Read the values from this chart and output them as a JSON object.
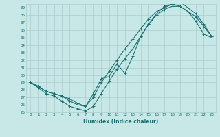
{
  "xlabel": "Humidex (Indice chaleur)",
  "xlim": [
    -0.5,
    23.5
  ],
  "ylim": [
    25,
    39.5
  ],
  "xticks": [
    0,
    1,
    2,
    3,
    4,
    5,
    6,
    7,
    8,
    9,
    10,
    11,
    12,
    13,
    14,
    15,
    16,
    17,
    18,
    19,
    20,
    21,
    22,
    23
  ],
  "yticks": [
    25,
    26,
    27,
    28,
    29,
    30,
    31,
    32,
    33,
    34,
    35,
    36,
    37,
    38,
    39
  ],
  "bg_color": "#c8e8e8",
  "grid_color": "#aacccc",
  "line_color": "#1a7070",
  "line1_x": [
    0,
    1,
    2,
    3,
    4,
    5,
    6,
    7,
    8,
    9,
    10,
    11,
    12,
    13,
    14,
    15,
    16,
    17,
    18,
    19,
    20,
    21,
    22,
    23
  ],
  "line1_y": [
    29.0,
    28.3,
    27.5,
    27.2,
    26.5,
    25.8,
    25.5,
    25.2,
    25.8,
    27.5,
    29.2,
    30.8,
    32.2,
    33.5,
    35.2,
    36.8,
    38.0,
    38.8,
    39.2,
    39.2,
    38.5,
    37.2,
    35.5,
    35.0
  ],
  "line2_x": [
    0,
    1,
    2,
    3,
    4,
    5,
    6,
    7,
    8,
    9,
    10,
    11,
    12,
    13,
    14,
    15,
    16,
    17,
    18,
    19,
    20,
    21,
    22,
    23
  ],
  "line2_y": [
    29.0,
    28.5,
    27.8,
    27.5,
    27.2,
    26.5,
    26.0,
    25.8,
    27.0,
    29.0,
    30.5,
    32.0,
    33.5,
    34.8,
    36.2,
    37.5,
    38.5,
    39.0,
    39.5,
    39.2,
    38.5,
    37.8,
    36.5,
    35.2
  ],
  "line3_x": [
    0,
    1,
    2,
    3,
    4,
    5,
    6,
    7,
    8,
    9,
    10,
    11,
    12,
    13,
    14,
    15,
    16,
    17,
    18,
    19,
    20,
    21,
    22,
    23
  ],
  "line3_y": [
    29.0,
    28.5,
    27.8,
    27.5,
    27.2,
    26.8,
    26.2,
    25.8,
    27.5,
    29.5,
    29.8,
    31.5,
    30.2,
    32.5,
    35.2,
    36.8,
    38.2,
    39.2,
    39.5,
    39.8,
    39.0,
    38.2,
    36.8,
    35.2
  ]
}
